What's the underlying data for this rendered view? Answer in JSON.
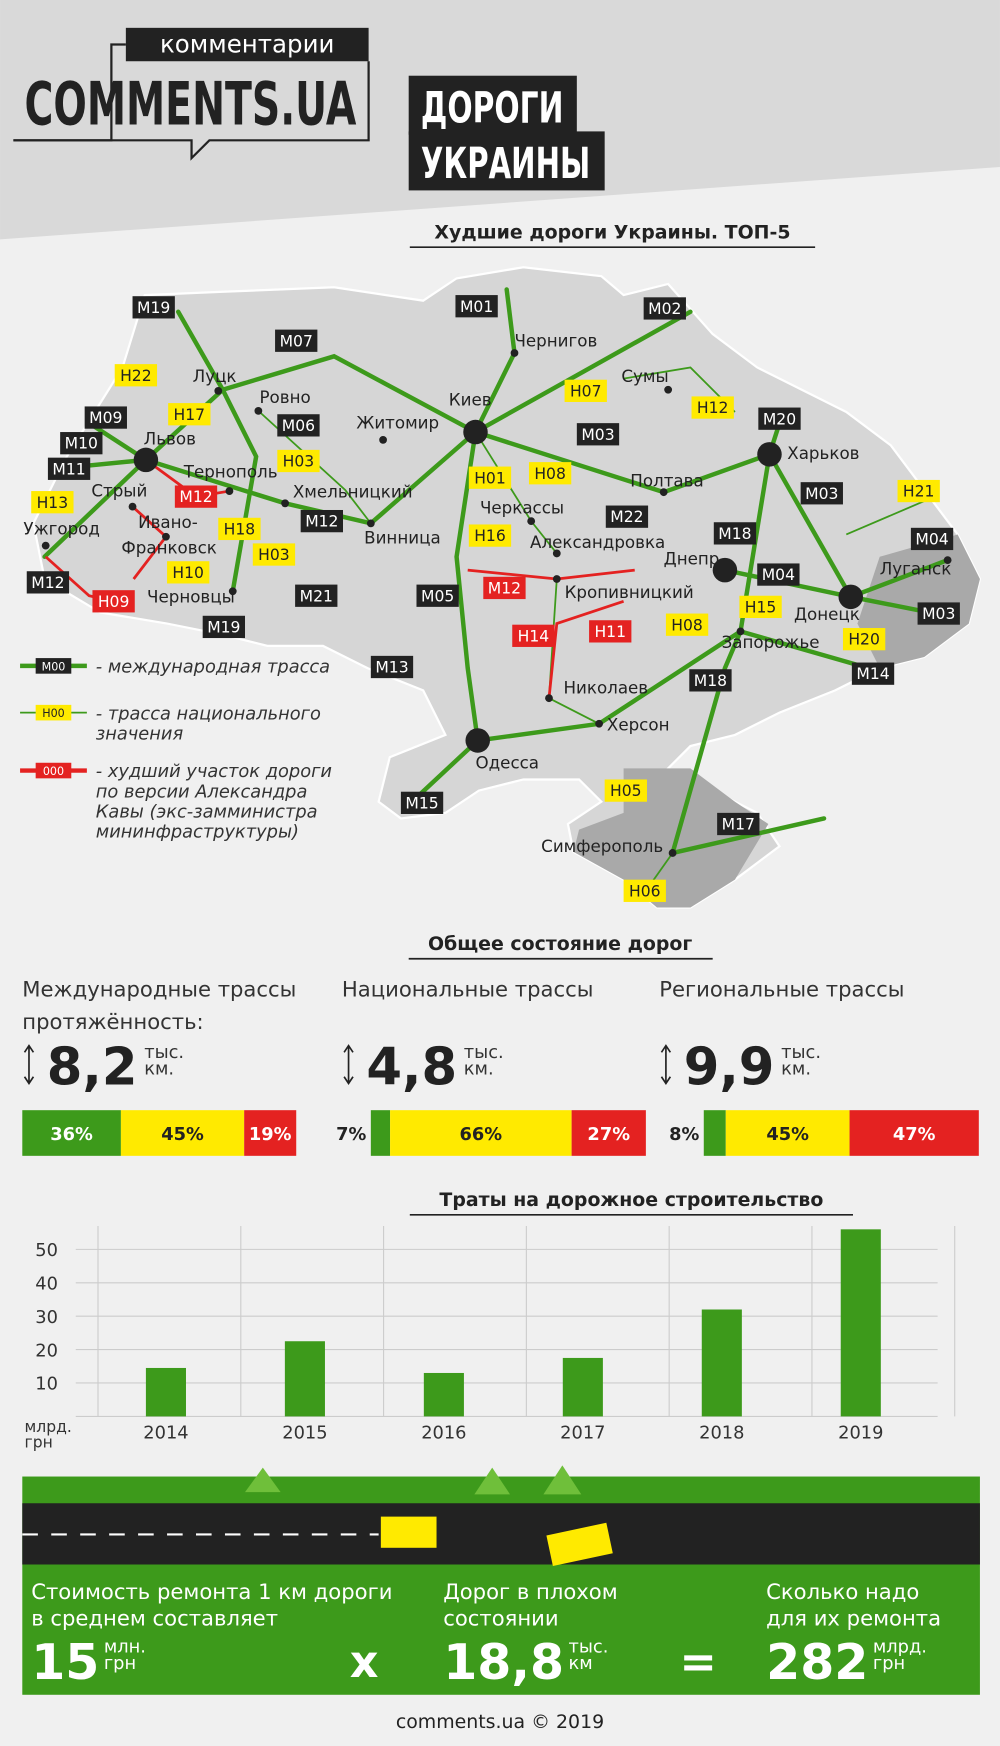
{
  "header": {
    "tagline": "комментарии",
    "brand": "COMMENTS.UA",
    "title_lines": [
      "ДОРОГИ",
      "УКРАИНЫ"
    ]
  },
  "map": {
    "title": "Худшие дороги Украины. ТОП-5",
    "roads": [
      {
        "code": "М19",
        "kind": "international"
      },
      {
        "code": "М07",
        "kind": "international"
      },
      {
        "code": "М01",
        "kind": "international"
      },
      {
        "code": "М02",
        "kind": "international"
      },
      {
        "code": "Н22",
        "kind": "national"
      },
      {
        "code": "Н17",
        "kind": "national"
      },
      {
        "code": "М09",
        "kind": "international"
      },
      {
        "code": "М06",
        "kind": "international"
      },
      {
        "code": "Н07",
        "kind": "national"
      },
      {
        "code": "Н12",
        "kind": "national"
      },
      {
        "code": "М20",
        "kind": "international"
      },
      {
        "code": "М10",
        "kind": "international"
      },
      {
        "code": "М11",
        "kind": "international"
      },
      {
        "code": "Н03",
        "kind": "national"
      },
      {
        "code": "М03",
        "kind": "international"
      },
      {
        "code": "Н01",
        "kind": "national"
      },
      {
        "code": "Н08",
        "kind": "national"
      },
      {
        "code": "М03",
        "kind": "international"
      },
      {
        "code": "Н21",
        "kind": "national"
      },
      {
        "code": "Н13",
        "kind": "national"
      },
      {
        "code": "М12",
        "kind": "worst"
      },
      {
        "code": "М12",
        "kind": "international"
      },
      {
        "code": "М22",
        "kind": "international"
      },
      {
        "code": "М18",
        "kind": "international"
      },
      {
        "code": "М04",
        "kind": "international"
      },
      {
        "code": "Н18",
        "kind": "national"
      },
      {
        "code": "Н16",
        "kind": "national"
      },
      {
        "code": "Н03",
        "kind": "national"
      },
      {
        "code": "Н10",
        "kind": "national"
      },
      {
        "code": "М12",
        "kind": "international"
      },
      {
        "code": "Н09",
        "kind": "worst"
      },
      {
        "code": "М21",
        "kind": "international"
      },
      {
        "code": "М05",
        "kind": "international"
      },
      {
        "code": "М12",
        "kind": "worst"
      },
      {
        "code": "М04",
        "kind": "international"
      },
      {
        "code": "Н15",
        "kind": "national"
      },
      {
        "code": "М03",
        "kind": "international"
      },
      {
        "code": "М19",
        "kind": "international"
      },
      {
        "code": "Н14",
        "kind": "worst"
      },
      {
        "code": "Н11",
        "kind": "worst"
      },
      {
        "code": "Н08",
        "kind": "national"
      },
      {
        "code": "Н20",
        "kind": "national"
      },
      {
        "code": "М13",
        "kind": "international"
      },
      {
        "code": "М18",
        "kind": "international"
      },
      {
        "code": "М14",
        "kind": "international"
      },
      {
        "code": "Н05",
        "kind": "national"
      },
      {
        "code": "М15",
        "kind": "international"
      },
      {
        "code": "М17",
        "kind": "international"
      },
      {
        "code": "Н06",
        "kind": "national"
      }
    ],
    "cities": [
      "Чернигов",
      "Луцк",
      "Сумы",
      "Ровно",
      "Киев",
      "Житомир",
      "Харьков",
      "Львов",
      "Тернополь",
      "Полтава",
      "Стрый",
      "Хмельницкий",
      "Черкассы",
      "Ивано-",
      "Франковск",
      "Ужгород",
      "Винница",
      "Александровка",
      "Днепр",
      "Луганск",
      "Кропивницкий",
      "Черновцы",
      "Донецк",
      "Запорожье",
      "Николаев",
      "Херсон",
      "Одесса",
      "Симферополь"
    ],
    "legend": [
      {
        "code": "М00",
        "kind": "international",
        "lines": [
          "- международная трасса"
        ]
      },
      {
        "code": "Н00",
        "kind": "national",
        "lines": [
          "- трасса национального",
          "значения"
        ]
      },
      {
        "code": "000",
        "kind": "worst",
        "lines": [
          "- худший участок дороги",
          "по версии Александра",
          "Кавы (экс-замминистра",
          "мининфраструктуры)"
        ]
      }
    ]
  },
  "status": {
    "title": "Общее состояние дорог",
    "colors": [
      "#3d9a1b",
      "#ffea00",
      "#e42221"
    ],
    "groups": [
      {
        "title_lines": [
          "Международные трассы",
          "протяжённость:"
        ],
        "amount": "8,2",
        "unit_lines": [
          "тыс.",
          "км."
        ],
        "values": [
          36,
          45,
          19
        ],
        "value_labels": [
          "36%",
          "45%",
          "19%"
        ]
      },
      {
        "title_lines": [
          "Национальные трассы"
        ],
        "amount": "4,8",
        "unit_lines": [
          "тыс.",
          "км."
        ],
        "values": [
          7,
          66,
          27
        ],
        "value_labels": [
          "7%",
          "66%",
          "27%"
        ]
      },
      {
        "title_lines": [
          "Региональные трассы"
        ],
        "amount": "9,9",
        "unit_lines": [
          "тыс.",
          "км."
        ],
        "values": [
          8,
          45,
          47
        ],
        "value_labels": [
          "8%",
          "45%",
          "47%"
        ]
      }
    ]
  },
  "chart_data": {
    "type": "bar",
    "title": "Траты на дорожное строительство",
    "ylabel_lines": [
      "млрд.",
      "грн"
    ],
    "categories": [
      "2014",
      "2015",
      "2016",
      "2017",
      "2018",
      "2019"
    ],
    "values": [
      14.5,
      22.5,
      13,
      17.5,
      32,
      56
    ],
    "color": "#3d9a1b",
    "ylim": [
      0,
      57
    ],
    "yticks": [
      10,
      20,
      30,
      40,
      50
    ],
    "grid": true
  },
  "summary": {
    "items": [
      {
        "lines": [
          "Стоимость ремонта 1 км дороги",
          "в среднем составляет"
        ],
        "amount": "15",
        "unit_lines": [
          "млн.",
          "грн"
        ]
      },
      {
        "lines": [
          "Дорог в плохом",
          "состоянии"
        ],
        "amount": "18,8",
        "unit_lines": [
          "тыс.",
          "км"
        ]
      },
      {
        "lines": [
          "Сколько надо",
          "для их ремонта"
        ],
        "amount": "282",
        "unit_lines": [
          "млрд.",
          "грн"
        ]
      }
    ],
    "operators": [
      "x",
      "="
    ]
  },
  "footer": "comments.ua © 2019"
}
